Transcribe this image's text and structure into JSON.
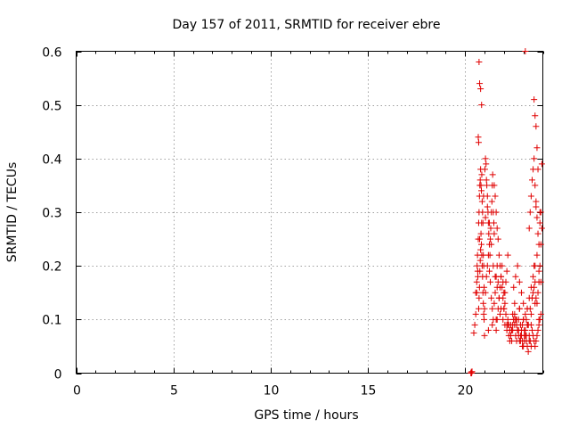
{
  "chart_data": {
    "type": "scatter",
    "title": "Day 157 of 2011, SRMTID for receiver ebre",
    "xlabel": "GPS time / hours",
    "ylabel": "SRMTID / TECUs",
    "xlim": [
      0,
      24
    ],
    "ylim": [
      0,
      0.6
    ],
    "xticks": [
      0,
      5,
      10,
      15,
      20
    ],
    "yticks": [
      0,
      0.1,
      0.2,
      0.3,
      0.4,
      0.5,
      0.6
    ],
    "ytick_labels": [
      "0",
      "0.1",
      "0.2",
      "0.3",
      "0.4",
      "0.5",
      "0.6"
    ],
    "grid": true,
    "marker": "+",
    "color": "#e00000",
    "series": [
      {
        "x": [
          20.3,
          20.32,
          20.34,
          20.36,
          20.45,
          20.5,
          20.55,
          20.6,
          20.62,
          20.64,
          20.66,
          20.68,
          20.7,
          20.72,
          20.74,
          20.76,
          20.78,
          20.8,
          20.82,
          20.84,
          20.86,
          20.88,
          20.9,
          20.92,
          20.94,
          20.96,
          20.98,
          20.7,
          20.72,
          20.74,
          20.76,
          20.78,
          20.8,
          20.82,
          20.84,
          20.86,
          20.88,
          20.9,
          20.92,
          20.94,
          20.96,
          20.98,
          21.0,
          21.02,
          21.05,
          21.08,
          21.1,
          21.12,
          21.15,
          21.18,
          21.2,
          21.22,
          21.25,
          21.28,
          21.3,
          21.32,
          21.35,
          21.38,
          21.4,
          21.42,
          21.45,
          21.48,
          21.5,
          21.05,
          21.1,
          21.15,
          21.2,
          21.25,
          21.3,
          21.35,
          21.4,
          21.45,
          21.5,
          21.55,
          21.6,
          21.65,
          21.7,
          21.5,
          21.55,
          21.6,
          21.65,
          21.7,
          21.75,
          21.8,
          21.85,
          21.9,
          21.95,
          22.0,
          22.05,
          22.1,
          22.15,
          22.2,
          21.6,
          21.65,
          21.7,
          21.75,
          21.8,
          21.85,
          21.9,
          21.95,
          22.0,
          22.05,
          22.1,
          22.15,
          22.2,
          22.25,
          22.3,
          22.35,
          22.4,
          22.45,
          22.5,
          22.55,
          22.6,
          22.65,
          22.7,
          22.75,
          22.8,
          22.85,
          22.9,
          22.95,
          23.0,
          23.05,
          23.1,
          23.15,
          23.2,
          23.25,
          23.3,
          23.35,
          23.4,
          22.3,
          22.35,
          22.4,
          22.45,
          22.5,
          22.55,
          22.6,
          22.65,
          22.7,
          22.75,
          22.8,
          22.85,
          22.9,
          22.95,
          23.0,
          23.05,
          23.1,
          23.15,
          23.2,
          23.25,
          23.3,
          22.5,
          22.6,
          22.7,
          22.8,
          22.9,
          23.0,
          23.1,
          23.2,
          23.3,
          23.4,
          23.5,
          23.6,
          23.7,
          23.8,
          23.9,
          23.3,
          23.35,
          23.4,
          23.45,
          23.5,
          23.55,
          23.6,
          23.65,
          23.7,
          23.75,
          23.8,
          23.85,
          23.9,
          23.95,
          23.4,
          23.45,
          23.5,
          23.55,
          23.6,
          23.65,
          23.7,
          23.75,
          23.8,
          23.85,
          23.9,
          23.5,
          23.55,
          23.6,
          23.65,
          23.7,
          23.75,
          23.8,
          23.85,
          23.9,
          23.1,
          23.55,
          23.6,
          23.65,
          23.7,
          20.72,
          20.75,
          20.8,
          20.85,
          20.68,
          20.7,
          21.0,
          21.2,
          21.4,
          21.6,
          21.8,
          22.0,
          22.2,
          22.4,
          22.6,
          22.8,
          23.0,
          23.2,
          23.4,
          23.6,
          23.8,
          20.55,
          20.6,
          20.65,
          20.75,
          20.85,
          20.95,
          21.05,
          21.15,
          21.25,
          21.35,
          21.45,
          21.55,
          21.65,
          21.75,
          21.85,
          21.95,
          22.05,
          22.15,
          22.25,
          22.35,
          22.45,
          22.55,
          22.65,
          22.75,
          22.85,
          22.95,
          23.05,
          23.15,
          23.25,
          23.35,
          23.45,
          23.55,
          23.65,
          23.75,
          23.85,
          23.95
        ],
        "y": [
          0.0,
          0.002,
          0.0,
          0.003,
          0.075,
          0.09,
          0.11,
          0.15,
          0.2,
          0.22,
          0.18,
          0.25,
          0.28,
          0.3,
          0.33,
          0.35,
          0.36,
          0.38,
          0.35,
          0.34,
          0.37,
          0.32,
          0.3,
          0.28,
          0.22,
          0.2,
          0.16,
          0.12,
          0.14,
          0.16,
          0.19,
          0.21,
          0.23,
          0.26,
          0.24,
          0.22,
          0.2,
          0.18,
          0.15,
          0.13,
          0.11,
          0.1,
          0.12,
          0.38,
          0.4,
          0.39,
          0.36,
          0.35,
          0.33,
          0.3,
          0.28,
          0.26,
          0.24,
          0.22,
          0.25,
          0.27,
          0.3,
          0.32,
          0.35,
          0.37,
          0.3,
          0.28,
          0.26,
          0.15,
          0.18,
          0.2,
          0.22,
          0.19,
          0.17,
          0.14,
          0.12,
          0.1,
          0.13,
          0.15,
          0.18,
          0.2,
          0.17,
          0.35,
          0.33,
          0.3,
          0.27,
          0.25,
          0.22,
          0.2,
          0.18,
          0.16,
          0.14,
          0.12,
          0.15,
          0.17,
          0.19,
          0.22,
          0.08,
          0.1,
          0.12,
          0.14,
          0.16,
          0.18,
          0.2,
          0.17,
          0.15,
          0.13,
          0.11,
          0.09,
          0.1,
          0.09,
          0.08,
          0.07,
          0.06,
          0.08,
          0.1,
          0.09,
          0.07,
          0.06,
          0.08,
          0.1,
          0.12,
          0.09,
          0.07,
          0.06,
          0.05,
          0.07,
          0.08,
          0.1,
          0.12,
          0.09,
          0.07,
          0.06,
          0.05,
          0.06,
          0.07,
          0.08,
          0.09,
          0.1,
          0.11,
          0.1,
          0.09,
          0.08,
          0.07,
          0.06,
          0.07,
          0.08,
          0.09,
          0.1,
          0.08,
          0.07,
          0.06,
          0.05,
          0.04,
          0.06,
          0.16,
          0.18,
          0.2,
          0.17,
          0.15,
          0.13,
          0.11,
          0.12,
          0.14,
          0.16,
          0.18,
          0.2,
          0.22,
          0.19,
          0.17,
          0.27,
          0.3,
          0.33,
          0.36,
          0.38,
          0.4,
          0.35,
          0.32,
          0.29,
          0.26,
          0.24,
          0.28,
          0.3,
          0.27,
          0.09,
          0.08,
          0.07,
          0.06,
          0.05,
          0.06,
          0.07,
          0.08,
          0.09,
          0.1,
          0.11,
          0.15,
          0.16,
          0.17,
          0.14,
          0.13,
          0.15,
          0.17,
          0.2,
          0.24,
          0.6,
          0.51,
          0.48,
          0.46,
          0.42,
          0.58,
          0.54,
          0.53,
          0.5,
          0.44,
          0.43,
          0.07,
          0.08,
          0.09,
          0.1,
          0.11,
          0.12,
          0.09,
          0.08,
          0.1,
          0.12,
          0.1,
          0.09,
          0.11,
          0.13,
          0.1,
          0.15,
          0.17,
          0.19,
          0.25,
          0.28,
          0.33,
          0.29,
          0.31,
          0.28,
          0.24,
          0.2,
          0.18,
          0.16,
          0.14,
          0.12,
          0.1,
          0.09,
          0.08,
          0.07,
          0.09,
          0.11,
          0.13,
          0.1,
          0.08,
          0.06,
          0.05,
          0.06,
          0.07,
          0.09,
          0.12,
          0.14,
          0.2,
          0.31,
          0.38,
          0.3,
          0.39
        ]
      }
    ]
  }
}
